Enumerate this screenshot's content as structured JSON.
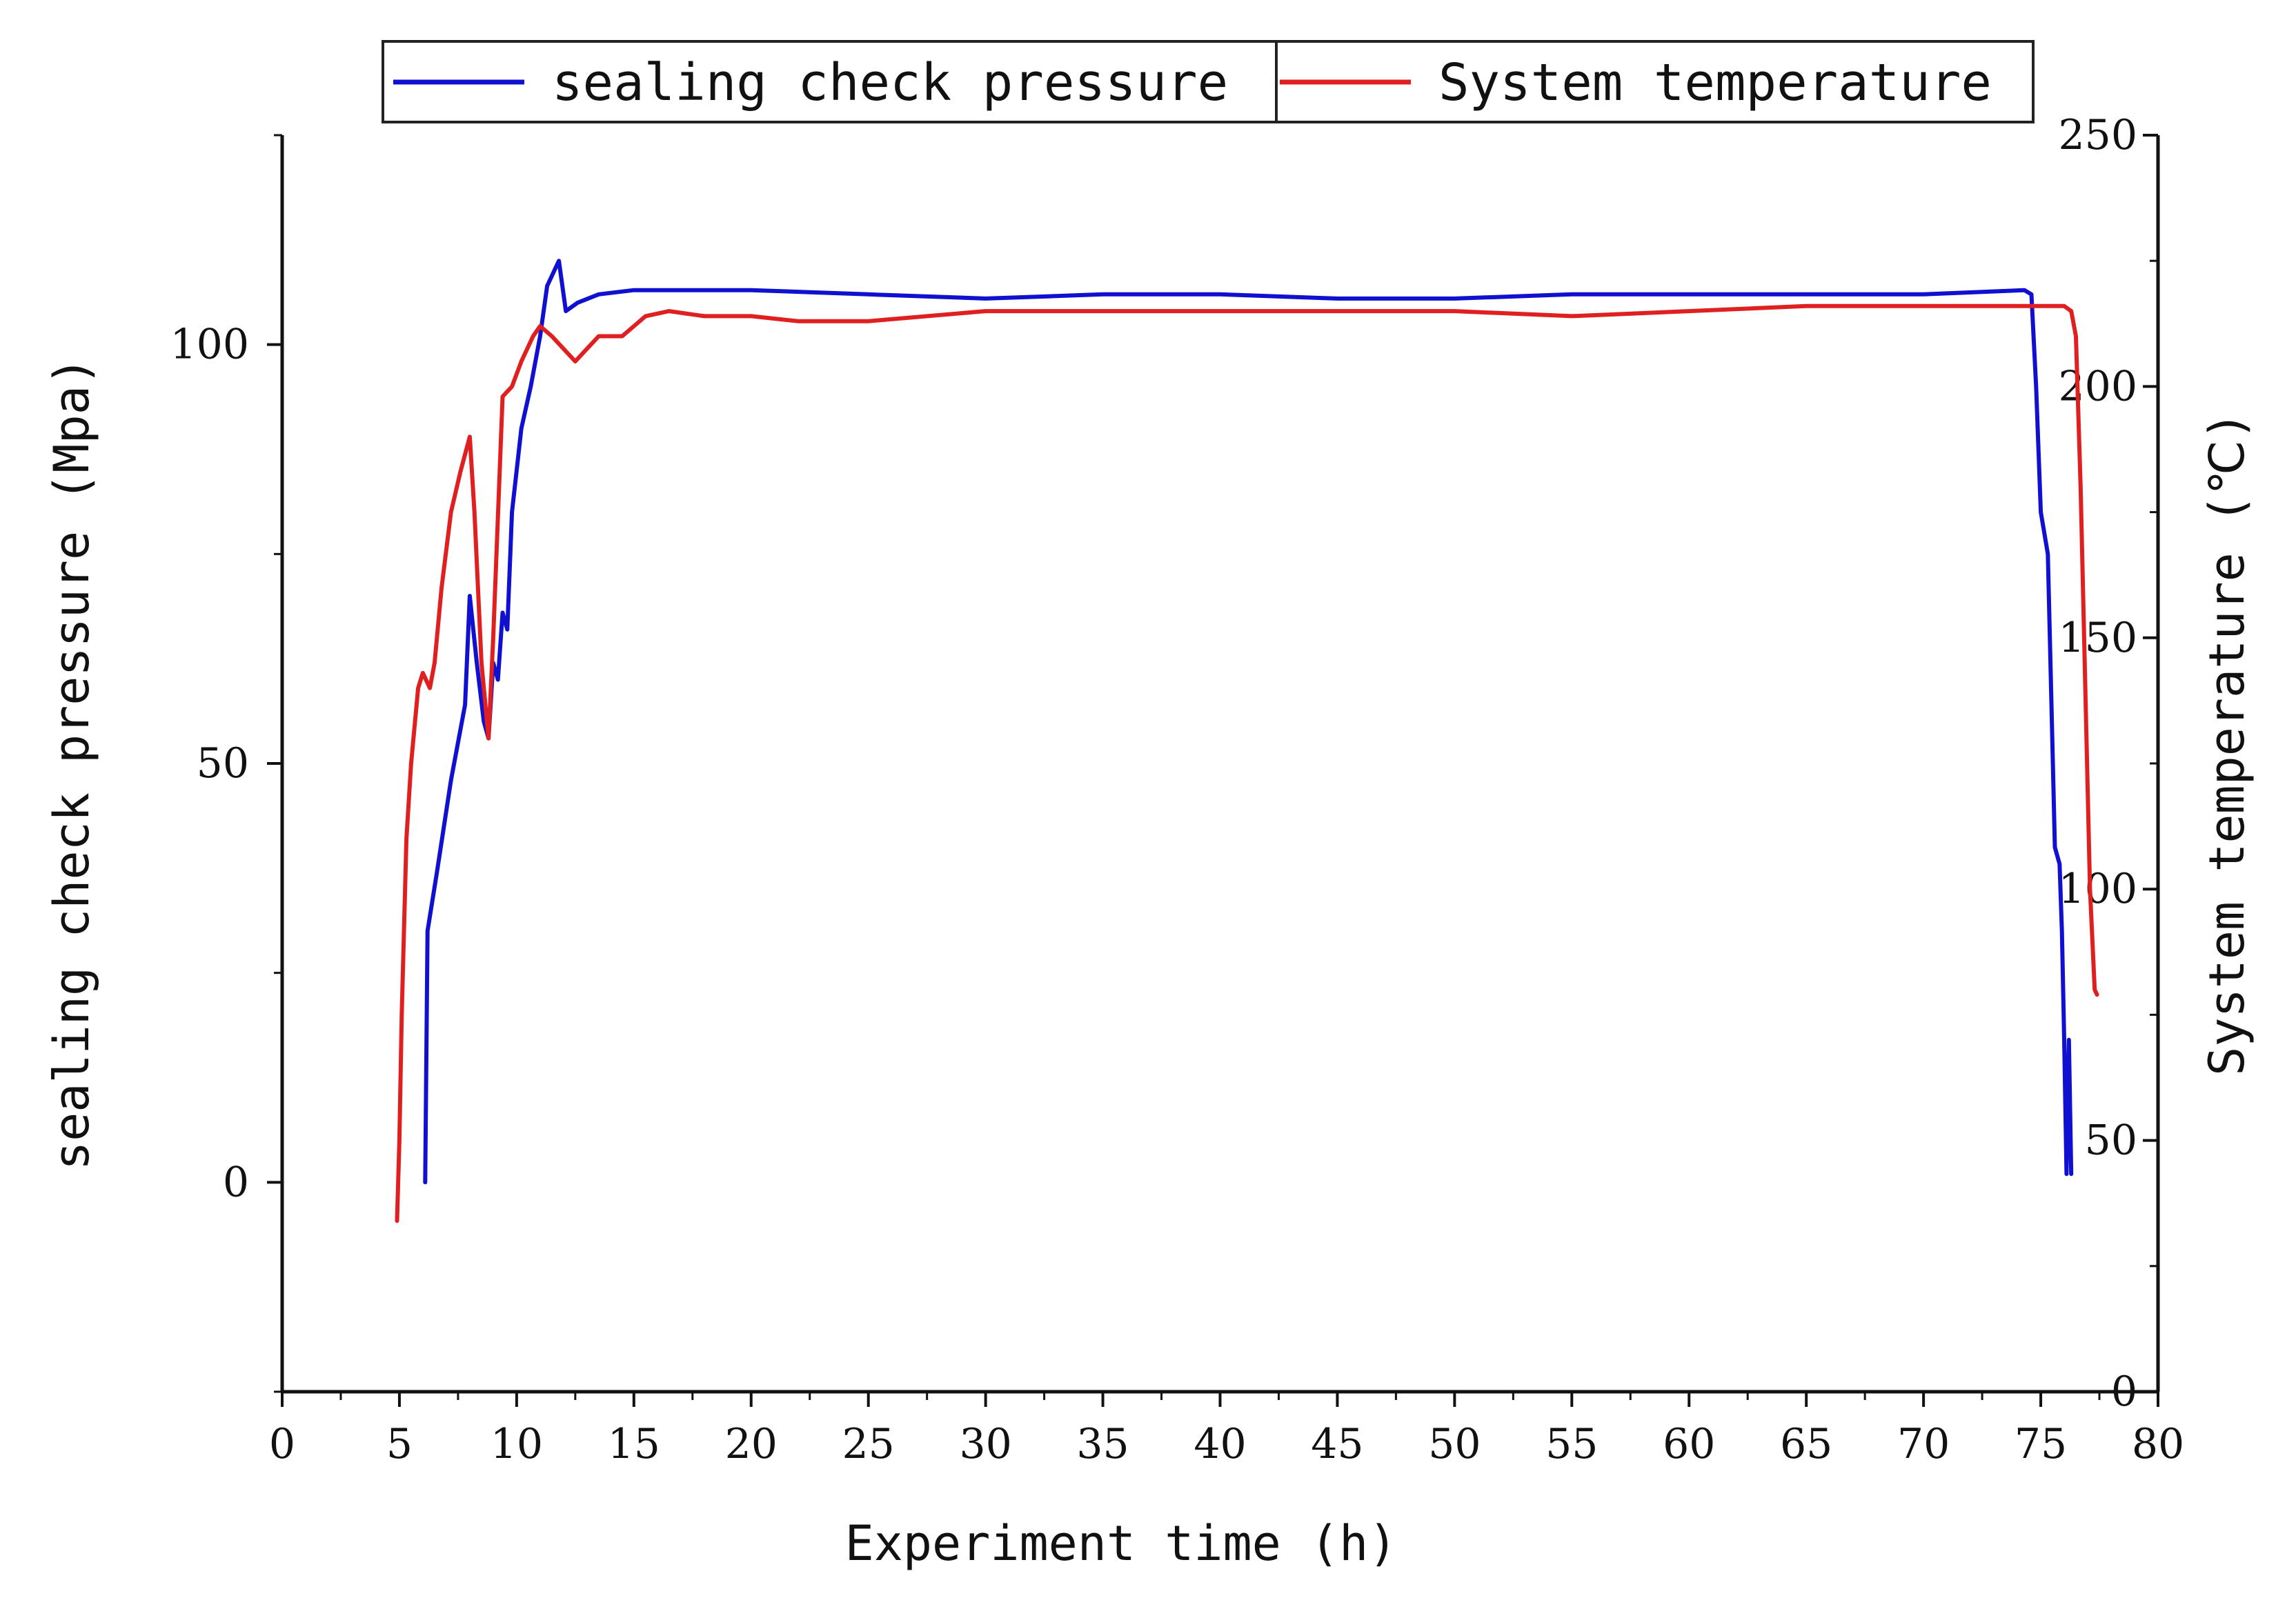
{
  "chart_data": {
    "type": "line",
    "xlabel": "Experiment time (h)",
    "ylabel_left": "sealing check pressure (Mpa)",
    "ylabel_right": "System temperature (℃)",
    "xlim": [
      0,
      80
    ],
    "ylim_left": [
      -25,
      125
    ],
    "ylim_right": [
      0,
      250
    ],
    "x_ticks": [
      0,
      5,
      10,
      15,
      20,
      25,
      30,
      35,
      40,
      45,
      50,
      55,
      60,
      65,
      70,
      75,
      80
    ],
    "y_left_ticks": [
      0,
      50,
      100
    ],
    "y_right_ticks": [
      0,
      50,
      100,
      150,
      200,
      250
    ],
    "grid": false,
    "legend_position": "top",
    "series": [
      {
        "name": "sealing check pressure",
        "axis": "left",
        "color": "#1010d0",
        "points": [
          [
            6.1,
            0
          ],
          [
            6.2,
            30
          ],
          [
            6.6,
            37
          ],
          [
            7.2,
            48
          ],
          [
            7.8,
            57
          ],
          [
            8.0,
            70
          ],
          [
            8.3,
            62
          ],
          [
            8.6,
            55
          ],
          [
            8.8,
            53
          ],
          [
            9.0,
            62
          ],
          [
            9.2,
            60
          ],
          [
            9.4,
            68
          ],
          [
            9.6,
            66
          ],
          [
            9.8,
            80
          ],
          [
            10.2,
            90
          ],
          [
            10.6,
            95
          ],
          [
            11.0,
            101
          ],
          [
            11.3,
            107
          ],
          [
            11.8,
            110
          ],
          [
            12.1,
            104
          ],
          [
            12.6,
            105
          ],
          [
            13.5,
            106
          ],
          [
            15.0,
            106.5
          ],
          [
            17.0,
            106.5
          ],
          [
            20.0,
            106.5
          ],
          [
            25.0,
            106
          ],
          [
            30.0,
            105.5
          ],
          [
            35.0,
            106
          ],
          [
            40.0,
            106
          ],
          [
            45.0,
            105.5
          ],
          [
            50.0,
            105.5
          ],
          [
            55.0,
            106
          ],
          [
            60.0,
            106
          ],
          [
            65.0,
            106
          ],
          [
            70.0,
            106
          ],
          [
            74.3,
            106.5
          ],
          [
            74.6,
            106
          ],
          [
            74.8,
            95
          ],
          [
            75.0,
            80
          ],
          [
            75.3,
            75
          ],
          [
            75.6,
            40
          ],
          [
            75.8,
            38
          ],
          [
            75.9,
            30
          ],
          [
            76.0,
            17
          ],
          [
            76.1,
            1
          ],
          [
            76.2,
            17
          ],
          [
            76.3,
            1
          ]
        ]
      },
      {
        "name": "System temperature",
        "axis": "right",
        "color": "#e02020",
        "points": [
          [
            4.9,
            34
          ],
          [
            5.0,
            50
          ],
          [
            5.1,
            75
          ],
          [
            5.3,
            110
          ],
          [
            5.5,
            125
          ],
          [
            5.8,
            140
          ],
          [
            6.0,
            143
          ],
          [
            6.3,
            140
          ],
          [
            6.5,
            145
          ],
          [
            6.8,
            160
          ],
          [
            7.2,
            175
          ],
          [
            7.6,
            183
          ],
          [
            8.0,
            190
          ],
          [
            8.2,
            175
          ],
          [
            8.5,
            145
          ],
          [
            8.8,
            130
          ],
          [
            9.0,
            150
          ],
          [
            9.4,
            198
          ],
          [
            9.8,
            200
          ],
          [
            10.2,
            205
          ],
          [
            10.7,
            210
          ],
          [
            11.0,
            212
          ],
          [
            11.5,
            210
          ],
          [
            12.5,
            205
          ],
          [
            13.5,
            210
          ],
          [
            14.5,
            210
          ],
          [
            15.5,
            214
          ],
          [
            16.5,
            215
          ],
          [
            18.0,
            214
          ],
          [
            20.0,
            214
          ],
          [
            22.0,
            213
          ],
          [
            25.0,
            213
          ],
          [
            30.0,
            215
          ],
          [
            35.0,
            215
          ],
          [
            40.0,
            215
          ],
          [
            45.0,
            215
          ],
          [
            50.0,
            215
          ],
          [
            55.0,
            214
          ],
          [
            60.0,
            215
          ],
          [
            65.0,
            216
          ],
          [
            70.0,
            216
          ],
          [
            74.0,
            216
          ],
          [
            76.0,
            216
          ],
          [
            76.3,
            215
          ],
          [
            76.5,
            210
          ],
          [
            76.7,
            180
          ],
          [
            76.9,
            140
          ],
          [
            77.1,
            100
          ],
          [
            77.3,
            80
          ],
          [
            77.4,
            79
          ]
        ]
      }
    ]
  }
}
